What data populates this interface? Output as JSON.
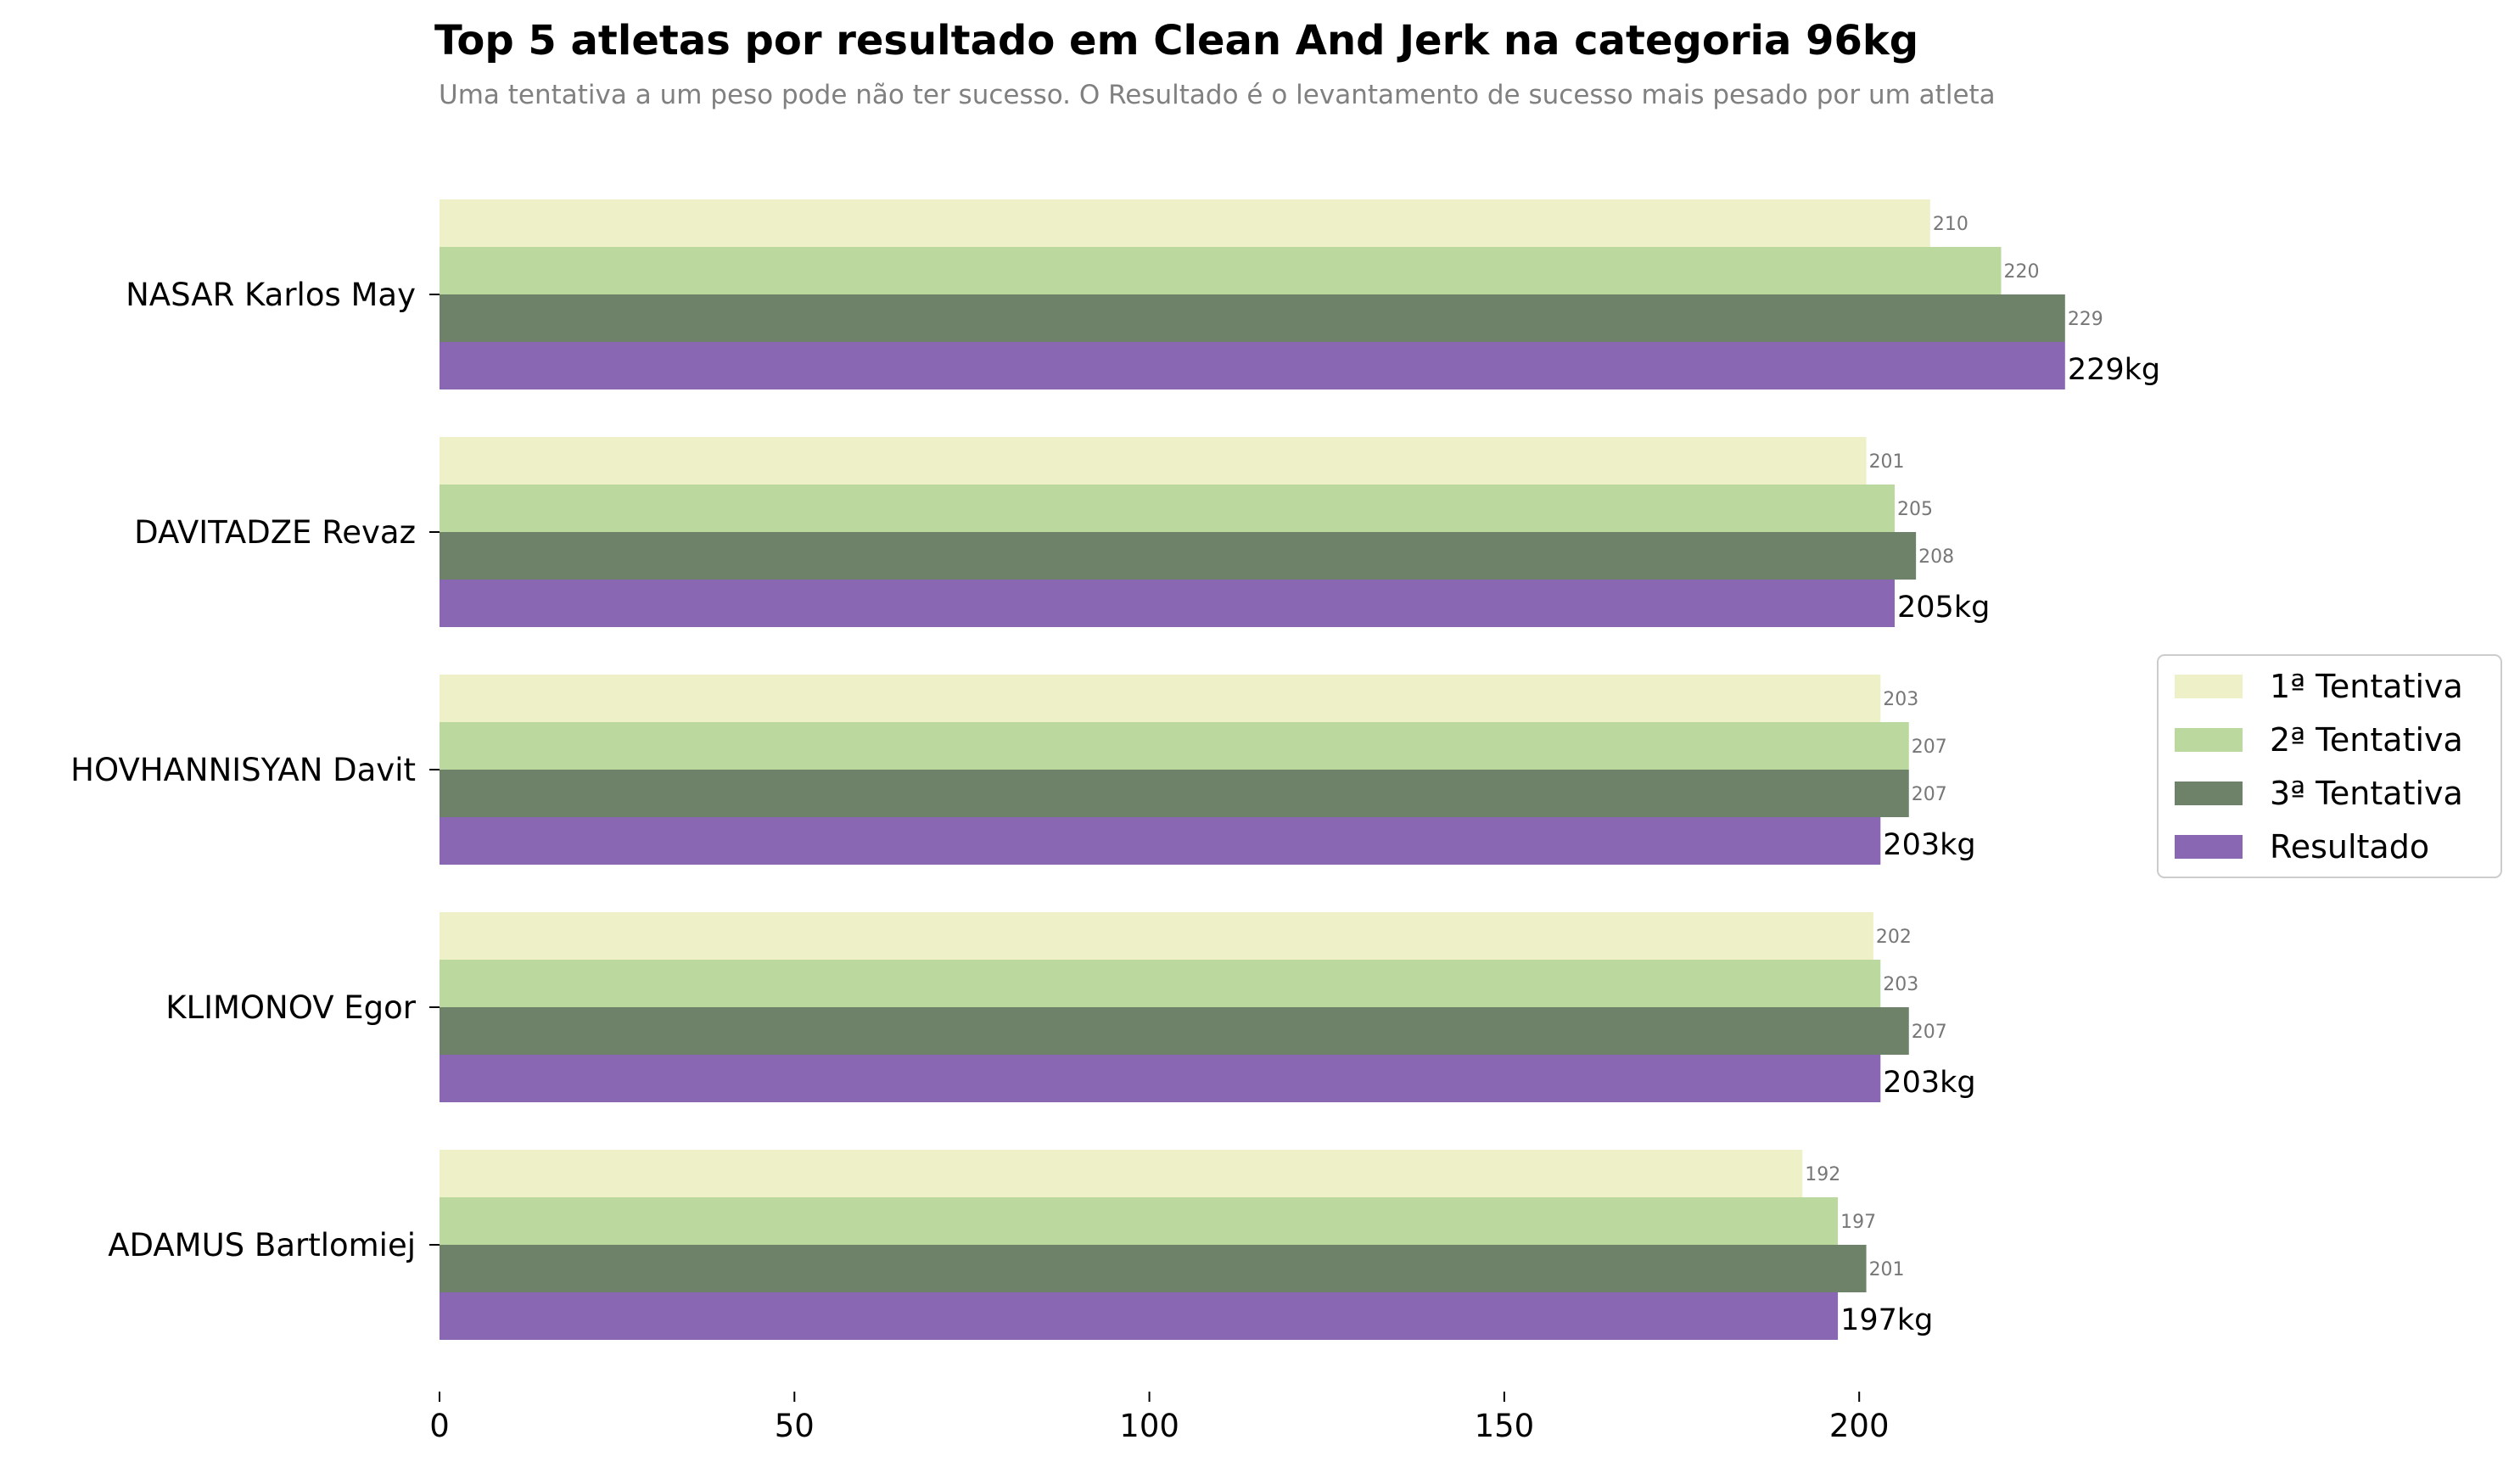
{
  "chart_data": {
    "type": "bar",
    "orientation": "horizontal",
    "title": "Top 5 atletas por resultado em Clean And Jerk na categoria 96kg",
    "subtitle": "Uma tentativa a um peso pode não ter sucesso. O Resultado é o levantamento de sucesso mais pesado por um atleta",
    "categories": [
      "NASAR Karlos May",
      "DAVITADZE Revaz",
      "HOVHANNISYAN Davit",
      "KLIMONOV Egor",
      "ADAMUS Bartlomiej"
    ],
    "series": [
      {
        "name": "1ª Tentativa",
        "color": "#eef1c8",
        "values": [
          210,
          201,
          203,
          202,
          192
        ]
      },
      {
        "name": "2ª Tentativa",
        "color": "#bbd99f",
        "values": [
          220,
          205,
          207,
          203,
          197
        ]
      },
      {
        "name": "3ª Tentativa",
        "color": "#6e826a",
        "values": [
          229,
          208,
          207,
          207,
          201
        ]
      },
      {
        "name": "Resultado",
        "color": "#8a67b2",
        "values": [
          229,
          205,
          203,
          203,
          197
        ]
      }
    ],
    "result_suffix": "kg",
    "xticks": [
      0,
      50,
      100,
      150,
      200
    ],
    "xlim": [
      0,
      229
    ],
    "grid": false,
    "legend_position": "right"
  }
}
